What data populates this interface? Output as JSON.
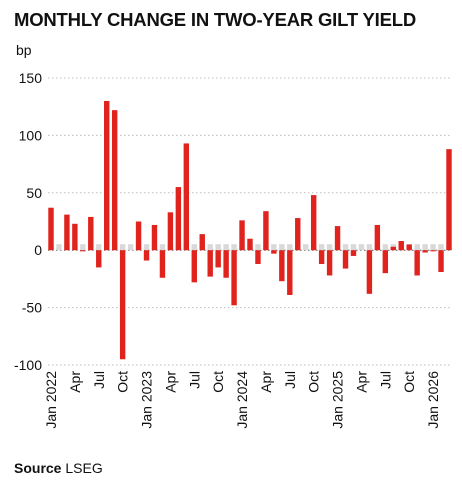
{
  "chart_data": {
    "type": "bar",
    "title": "MONTHLY CHANGE IN TWO-YEAR GILT YIELD",
    "ylabel": "bp",
    "ylim": [
      -100,
      150
    ],
    "yticks": [
      -100,
      -50,
      0,
      50,
      100,
      150
    ],
    "ytick_labels": [
      "-100",
      "-50",
      "0",
      "50",
      "100",
      "150"
    ],
    "grid": "horizontal dotted",
    "bar_color": "#e0231d",
    "categories": [
      "Jan 2022",
      "Feb 2022",
      "Mar 2022",
      "Apr 2022",
      "May 2022",
      "Jun 2022",
      "Jul 2022",
      "Aug 2022",
      "Sep 2022",
      "Oct 2022",
      "Nov 2022",
      "Dec 2022",
      "Jan 2023",
      "Feb 2023",
      "Mar 2023",
      "Apr 2023",
      "May 2023",
      "Jun 2023",
      "Jul 2023",
      "Aug 2023",
      "Sep 2023",
      "Oct 2023",
      "Nov 2023",
      "Dec 2023",
      "Jan 2024",
      "Feb 2024",
      "Mar 2024",
      "Apr 2024",
      "May 2024",
      "Jun 2024",
      "Jul 2024",
      "Aug 2024",
      "Sep 2024",
      "Oct 2024",
      "Nov 2024",
      "Dec 2024",
      "Jan 2025",
      "Feb 2025",
      "Mar 2025",
      "Apr 2025",
      "May 2025",
      "Jun 2025",
      "Jul 2025",
      "Aug 2025",
      "Sep 2025",
      "Oct 2025",
      "Nov 2025",
      "Dec 2025",
      "Jan 2026",
      "Feb 2026",
      "Mar 2026"
    ],
    "values": [
      37,
      0,
      31,
      23,
      -1,
      29,
      -15,
      130,
      122,
      -95,
      0,
      25,
      -9,
      22,
      -24,
      33,
      55,
      93,
      -28,
      14,
      -23,
      -15,
      -24,
      -48,
      26,
      10,
      -12,
      34,
      -3,
      -27,
      -39,
      28,
      0,
      48,
      -12,
      -22,
      21,
      -16,
      -5,
      0,
      -38,
      22,
      -20,
      3,
      8,
      5,
      -22,
      -2,
      -1,
      -19,
      88
    ],
    "xtick_labels": [
      {
        "index": 0,
        "label": "Jan 2022"
      },
      {
        "index": 3,
        "label": "Apr"
      },
      {
        "index": 6,
        "label": "Jul"
      },
      {
        "index": 9,
        "label": "Oct"
      },
      {
        "index": 12,
        "label": "Jan 2023"
      },
      {
        "index": 15,
        "label": "Apr"
      },
      {
        "index": 18,
        "label": "Jul"
      },
      {
        "index": 21,
        "label": "Oct"
      },
      {
        "index": 24,
        "label": "Jan 2024"
      },
      {
        "index": 27,
        "label": "Apr"
      },
      {
        "index": 30,
        "label": "Jul"
      },
      {
        "index": 33,
        "label": "Oct"
      },
      {
        "index": 36,
        "label": "Jan 2025"
      },
      {
        "index": 39,
        "label": "Apr"
      },
      {
        "index": 42,
        "label": "Jul"
      },
      {
        "index": 45,
        "label": "Oct"
      },
      {
        "index": 48,
        "label": "Jan 2026"
      }
    ]
  },
  "source": {
    "label": "Source",
    "text": "LSEG"
  }
}
